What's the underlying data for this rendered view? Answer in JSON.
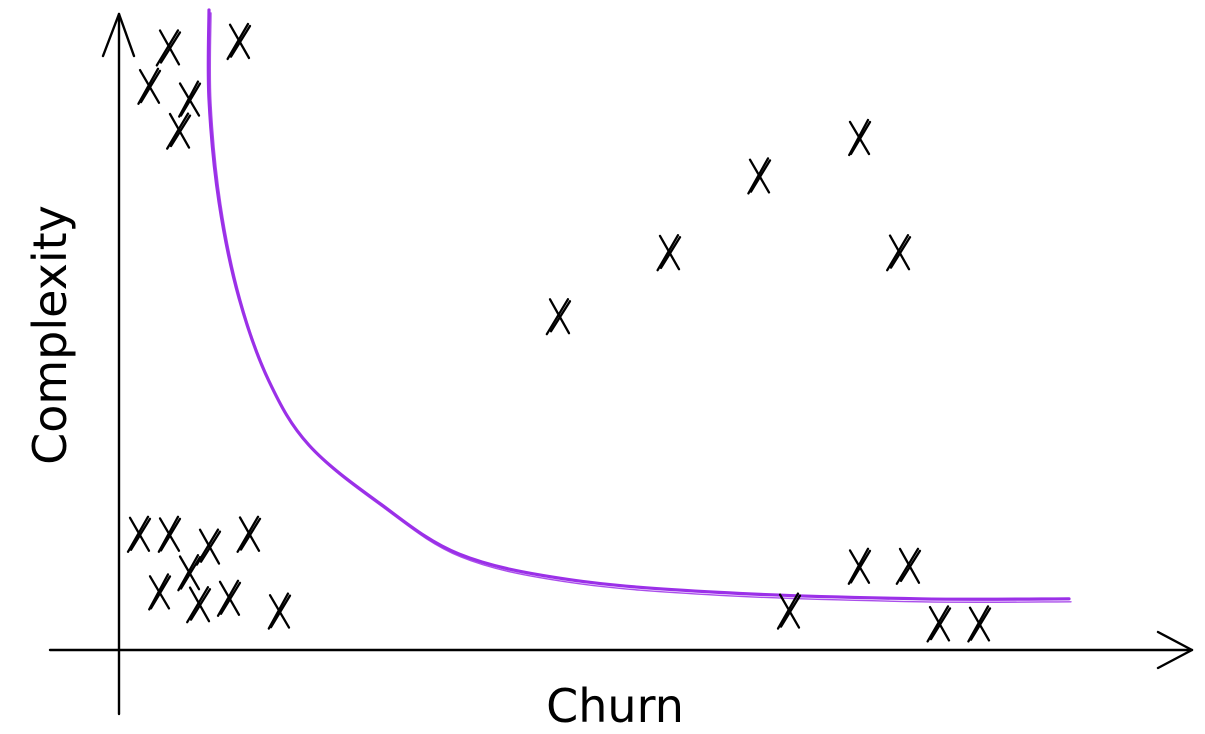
{
  "diagram": {
    "x_axis_label": "Churn",
    "y_axis_label": "Complexity",
    "curve_color": "#9b30e8",
    "marker_glyph": "X",
    "points": [
      [
        0.05,
        0.94
      ],
      [
        0.12,
        0.95
      ],
      [
        0.03,
        0.88
      ],
      [
        0.07,
        0.86
      ],
      [
        0.06,
        0.81
      ],
      [
        0.02,
        0.18
      ],
      [
        0.05,
        0.18
      ],
      [
        0.09,
        0.16
      ],
      [
        0.13,
        0.18
      ],
      [
        0.07,
        0.12
      ],
      [
        0.04,
        0.09
      ],
      [
        0.08,
        0.07
      ],
      [
        0.11,
        0.08
      ],
      [
        0.16,
        0.06
      ],
      [
        0.44,
        0.52
      ],
      [
        0.55,
        0.62
      ],
      [
        0.64,
        0.74
      ],
      [
        0.74,
        0.8
      ],
      [
        0.78,
        0.62
      ],
      [
        0.67,
        0.06
      ],
      [
        0.74,
        0.13
      ],
      [
        0.79,
        0.13
      ],
      [
        0.82,
        0.04
      ],
      [
        0.86,
        0.04
      ]
    ],
    "curve": [
      [
        0.09,
        1.0
      ],
      [
        0.09,
        0.86
      ],
      [
        0.1,
        0.7
      ],
      [
        0.12,
        0.55
      ],
      [
        0.15,
        0.42
      ],
      [
        0.19,
        0.32
      ],
      [
        0.26,
        0.23
      ],
      [
        0.34,
        0.15
      ],
      [
        0.45,
        0.11
      ],
      [
        0.6,
        0.09
      ],
      [
        0.8,
        0.08
      ],
      [
        0.95,
        0.08
      ]
    ]
  }
}
